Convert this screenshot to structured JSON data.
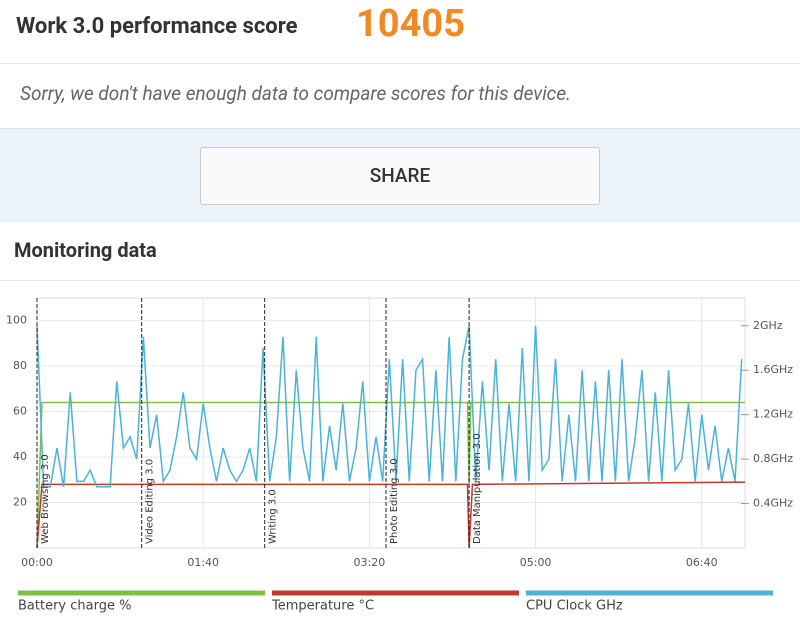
{
  "header": {
    "title": "Work 3.0 performance score",
    "score": 10405
  },
  "message": "Sorry, we don't have enough data to compare scores for this device.",
  "share_button": "SHARE",
  "monitoring": {
    "title": "Monitoring data"
  },
  "chart_data": {
    "type": "line",
    "xlim": [
      0,
      426
    ],
    "xticks": [
      {
        "value": 0,
        "label": "00:00"
      },
      {
        "value": 100,
        "label": "01:40"
      },
      {
        "value": 200,
        "label": "03:20"
      },
      {
        "value": 300,
        "label": "05:00"
      },
      {
        "value": 400,
        "label": "06:40"
      }
    ],
    "ylim": [
      0,
      110
    ],
    "yticks": [
      20,
      40,
      60,
      80,
      100
    ],
    "y2lim": [
      0,
      2.25
    ],
    "y2ticks": [
      {
        "value": 0.4,
        "label": "0.4GHz"
      },
      {
        "value": 0.8,
        "label": "0.8GHz"
      },
      {
        "value": 1.2,
        "label": "1.2GHz"
      },
      {
        "value": 1.6,
        "label": "1.6GHz"
      },
      {
        "value": 2,
        "label": "2GHz"
      }
    ],
    "grid": true,
    "markers": [
      {
        "label": "Web Browsing 3.0",
        "x": 0
      },
      {
        "label": "Video Editing 3.0",
        "x": 63
      },
      {
        "label": "Writing 3.0",
        "x": 137
      },
      {
        "label": "Photo Editing 3.0",
        "x": 210
      },
      {
        "label": "Data Manipulation 3.0",
        "x": 260
      }
    ],
    "series": [
      {
        "name": "Battery charge %",
        "color": "#7cc142",
        "x": [
          0,
          3,
          259,
          260,
          261,
          426
        ],
        "values": [
          0,
          64,
          64,
          28,
          64,
          64
        ]
      },
      {
        "name": "Temperature °C",
        "color": "#c0392b",
        "x": [
          0,
          3,
          259,
          260,
          262,
          426
        ],
        "values": [
          0,
          28,
          28,
          0,
          28,
          29
        ]
      },
      {
        "name": "CPU Clock GHz",
        "color": "#4ab3d8",
        "axis": "y2",
        "x": [
          0,
          4,
          8,
          12,
          16,
          20,
          24,
          28,
          32,
          36,
          40,
          44,
          48,
          52,
          56,
          60,
          64,
          68,
          72,
          76,
          80,
          84,
          88,
          92,
          96,
          100,
          104,
          108,
          112,
          116,
          120,
          124,
          128,
          132,
          136,
          140,
          144,
          148,
          152,
          156,
          160,
          164,
          168,
          172,
          176,
          180,
          184,
          188,
          192,
          196,
          200,
          204,
          208,
          212,
          216,
          220,
          224,
          228,
          232,
          236,
          240,
          244,
          248,
          252,
          256,
          260,
          264,
          268,
          272,
          276,
          280,
          284,
          288,
          292,
          296,
          300,
          304,
          308,
          312,
          316,
          320,
          324,
          328,
          332,
          336,
          340,
          344,
          348,
          352,
          356,
          360,
          364,
          368,
          372,
          376,
          380,
          384,
          388,
          392,
          396,
          400,
          404,
          408,
          412,
          416,
          420,
          424
        ],
        "values": [
          2.0,
          0.55,
          0.55,
          0.9,
          0.55,
          1.4,
          0.6,
          0.6,
          0.7,
          0.55,
          0.55,
          0.55,
          1.5,
          0.9,
          1.0,
          0.8,
          1.9,
          0.9,
          1.2,
          0.6,
          0.7,
          1.0,
          1.4,
          0.9,
          0.8,
          1.3,
          0.9,
          0.6,
          0.9,
          0.7,
          0.6,
          0.7,
          0.9,
          0.6,
          1.8,
          0.6,
          1.0,
          1.9,
          0.6,
          1.6,
          0.9,
          0.6,
          1.9,
          0.6,
          1.1,
          0.7,
          1.3,
          0.6,
          0.9,
          1.5,
          0.6,
          1.0,
          0.6,
          1.7,
          0.6,
          1.7,
          0.6,
          1.6,
          1.7,
          0.6,
          1.6,
          0.6,
          1.9,
          0.6,
          1.7,
          2.0,
          0.6,
          1.5,
          0.7,
          1.7,
          0.6,
          1.3,
          0.6,
          1.8,
          0.6,
          2.0,
          0.7,
          0.8,
          1.7,
          0.6,
          1.2,
          0.6,
          1.6,
          0.6,
          1.5,
          0.6,
          1.6,
          0.6,
          1.7,
          0.6,
          1.0,
          1.6,
          0.6,
          1.4,
          0.6,
          1.6,
          0.7,
          0.8,
          1.3,
          0.6,
          1.2,
          0.7,
          1.1,
          0.6,
          0.9,
          0.6,
          1.7
        ]
      }
    ]
  }
}
